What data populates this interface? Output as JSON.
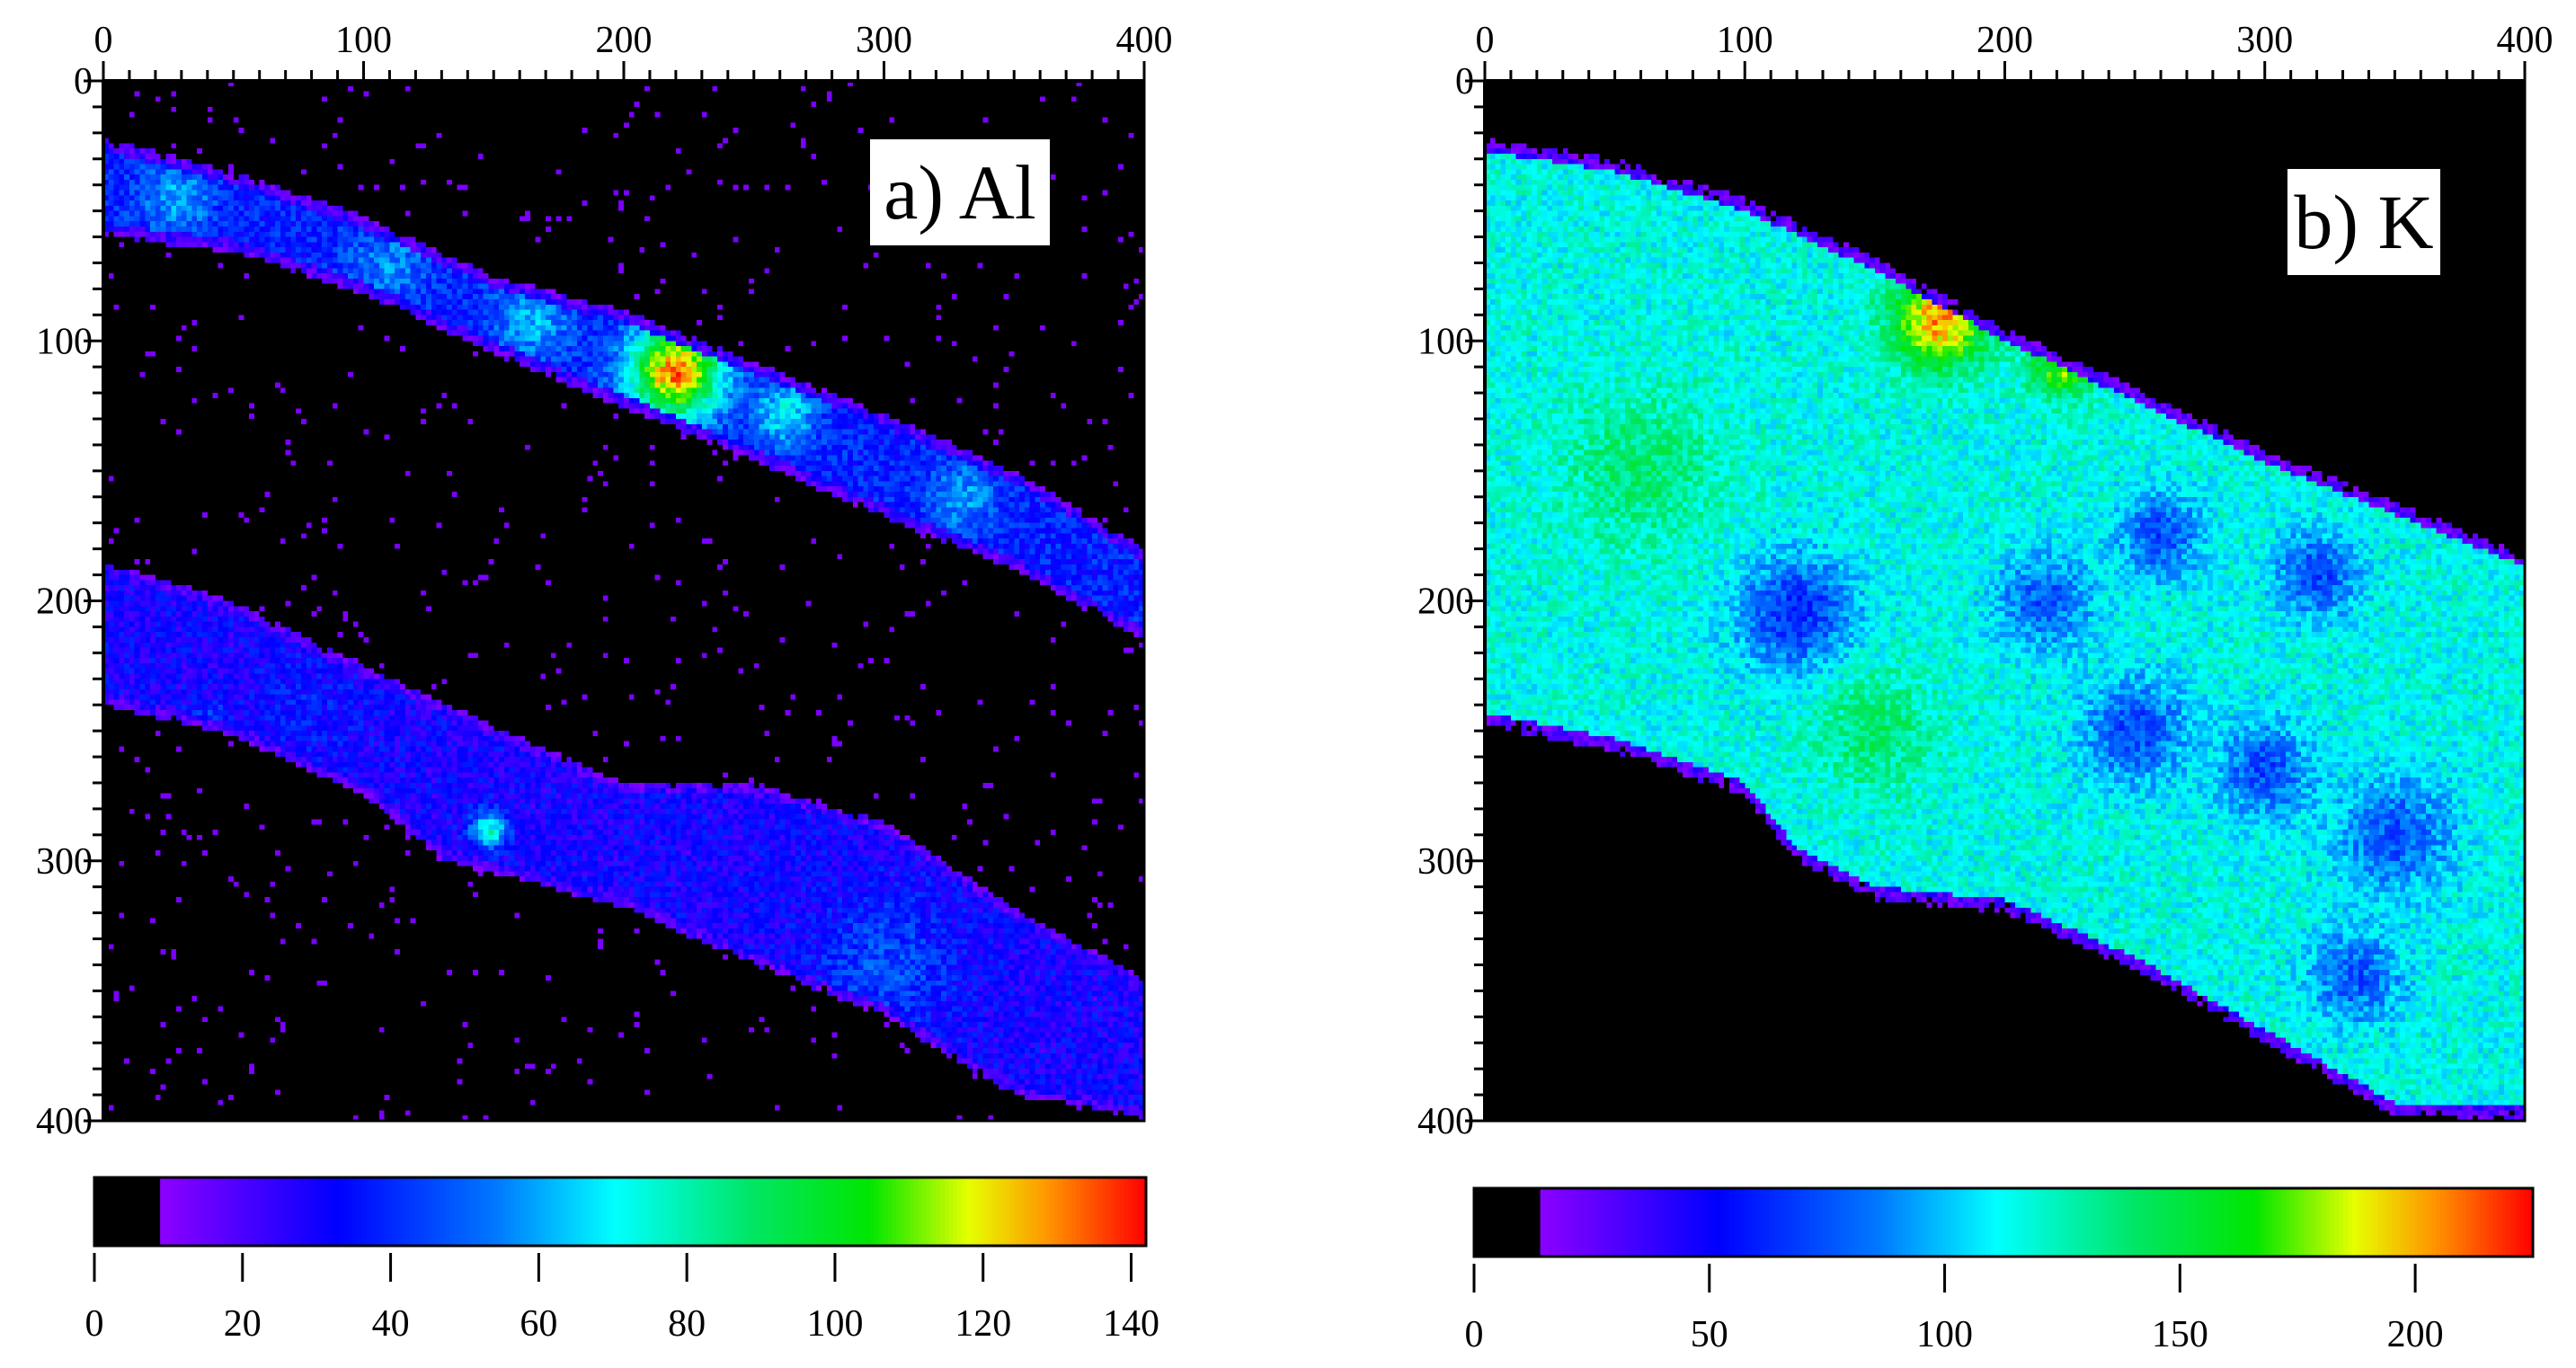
{
  "chart_data": [
    {
      "type": "heatmap",
      "panel_label": "a) Al",
      "x_range": [
        0,
        400
      ],
      "y_range": [
        0,
        400
      ],
      "x_ticks": [
        "0",
        "100",
        "200",
        "300",
        "400"
      ],
      "y_ticks": [
        "0",
        "100",
        "200",
        "300",
        "400"
      ],
      "colorbar": {
        "range": [
          0,
          142
        ],
        "ticks": [
          "0",
          "20",
          "40",
          "60",
          "80",
          "100",
          "120",
          "140"
        ],
        "tick_values": [
          0,
          20,
          40,
          60,
          80,
          100,
          120,
          140
        ],
        "black_below": 9
      },
      "regions": [
        {
          "name": "upper band",
          "top": [
            [
              0,
              22
            ],
            [
              50,
              35
            ],
            [
              100,
              52
            ],
            [
              150,
              75
            ],
            [
              200,
              88
            ],
            [
              250,
              108
            ],
            [
              300,
              128
            ],
            [
              350,
              150
            ],
            [
              400,
              180
            ]
          ],
          "bottom": [
            [
              0,
              60
            ],
            [
              50,
              66
            ],
            [
              100,
              82
            ],
            [
              150,
              105
            ],
            [
              200,
              126
            ],
            [
              250,
              146
            ],
            [
              300,
              168
            ],
            [
              350,
              188
            ],
            [
              400,
              215
            ]
          ],
          "base": 38,
          "hotspots": [
            {
              "x": 28,
              "y": 45,
              "r": 14,
              "value": 60
            },
            {
              "x": 110,
              "y": 70,
              "r": 16,
              "value": 55
            },
            {
              "x": 165,
              "y": 92,
              "r": 15,
              "value": 62
            },
            {
              "x": 220,
              "y": 112,
              "r": 18,
              "value": 132
            },
            {
              "x": 262,
              "y": 128,
              "r": 12,
              "value": 70
            },
            {
              "x": 330,
              "y": 160,
              "r": 14,
              "value": 58
            }
          ]
        },
        {
          "name": "lower band",
          "top": [
            [
              0,
              185
            ],
            [
              50,
              200
            ],
            [
              100,
              225
            ],
            [
              150,
              248
            ],
            [
              200,
              270
            ],
            [
              250,
              270
            ],
            [
              300,
              285
            ],
            [
              350,
              318
            ],
            [
              400,
              345
            ]
          ],
          "bottom": [
            [
              0,
              240
            ],
            [
              50,
              252
            ],
            [
              100,
              275
            ],
            [
              130,
              300
            ],
            [
              150,
              305
            ],
            [
              200,
              318
            ],
            [
              250,
              340
            ],
            [
              300,
              360
            ],
            [
              350,
              390
            ],
            [
              400,
              400
            ]
          ],
          "base": 30,
          "hotspots": [
            {
              "x": 40,
              "y": 250,
              "r": 8,
              "value": 60
            },
            {
              "x": 148,
              "y": 288,
              "r": 7,
              "value": 75
            },
            {
              "x": 300,
              "y": 340,
              "r": 26,
              "value": 46
            },
            {
              "x": 80,
              "y": 240,
              "r": 20,
              "value": 36
            }
          ]
        }
      ],
      "scatter_value": 12
    },
    {
      "type": "heatmap",
      "panel_label": "b) K",
      "x_range": [
        0,
        400
      ],
      "y_range": [
        0,
        400
      ],
      "x_ticks": [
        "0",
        "100",
        "200",
        "300",
        "400"
      ],
      "y_ticks": [
        "0",
        "100",
        "200",
        "300",
        "400"
      ],
      "colorbar": {
        "range": [
          0,
          225
        ],
        "ticks": [
          "0",
          "50",
          "100",
          "150",
          "200"
        ],
        "tick_values": [
          0,
          50,
          100,
          150,
          200
        ],
        "black_below": 14
      },
      "regions": [
        {
          "name": "matrix",
          "top": [
            [
              0,
              22
            ],
            [
              50,
              30
            ],
            [
              100,
              45
            ],
            [
              150,
              68
            ],
            [
              200,
              95
            ],
            [
              250,
              118
            ],
            [
              300,
              142
            ],
            [
              350,
              162
            ],
            [
              400,
              182
            ]
          ],
          "bottom": [
            [
              0,
              248
            ],
            [
              50,
              258
            ],
            [
              100,
              275
            ],
            [
              120,
              300
            ],
            [
              150,
              315
            ],
            [
              200,
              320
            ],
            [
              250,
              342
            ],
            [
              300,
              370
            ],
            [
              350,
              398
            ],
            [
              400,
              400
            ]
          ],
          "base": 115,
          "hotspots": [
            {
              "x": 175,
              "y": 92,
              "r": 18,
              "value": 205
            },
            {
              "x": 222,
              "y": 110,
              "r": 12,
              "value": 175
            },
            {
              "x": 120,
              "y": 205,
              "r": 22,
              "value": 62
            },
            {
              "x": 215,
              "y": 200,
              "r": 18,
              "value": 75
            },
            {
              "x": 260,
              "y": 175,
              "r": 16,
              "value": 72
            },
            {
              "x": 320,
              "y": 190,
              "r": 16,
              "value": 70
            },
            {
              "x": 250,
              "y": 250,
              "r": 20,
              "value": 70
            },
            {
              "x": 300,
              "y": 265,
              "r": 18,
              "value": 72
            },
            {
              "x": 350,
              "y": 290,
              "r": 22,
              "value": 74
            },
            {
              "x": 335,
              "y": 345,
              "r": 18,
              "value": 76
            },
            {
              "x": 60,
              "y": 150,
              "r": 30,
              "value": 138
            },
            {
              "x": 150,
              "y": 250,
              "r": 22,
              "value": 140
            }
          ]
        }
      ],
      "scatter_value": 0
    }
  ]
}
